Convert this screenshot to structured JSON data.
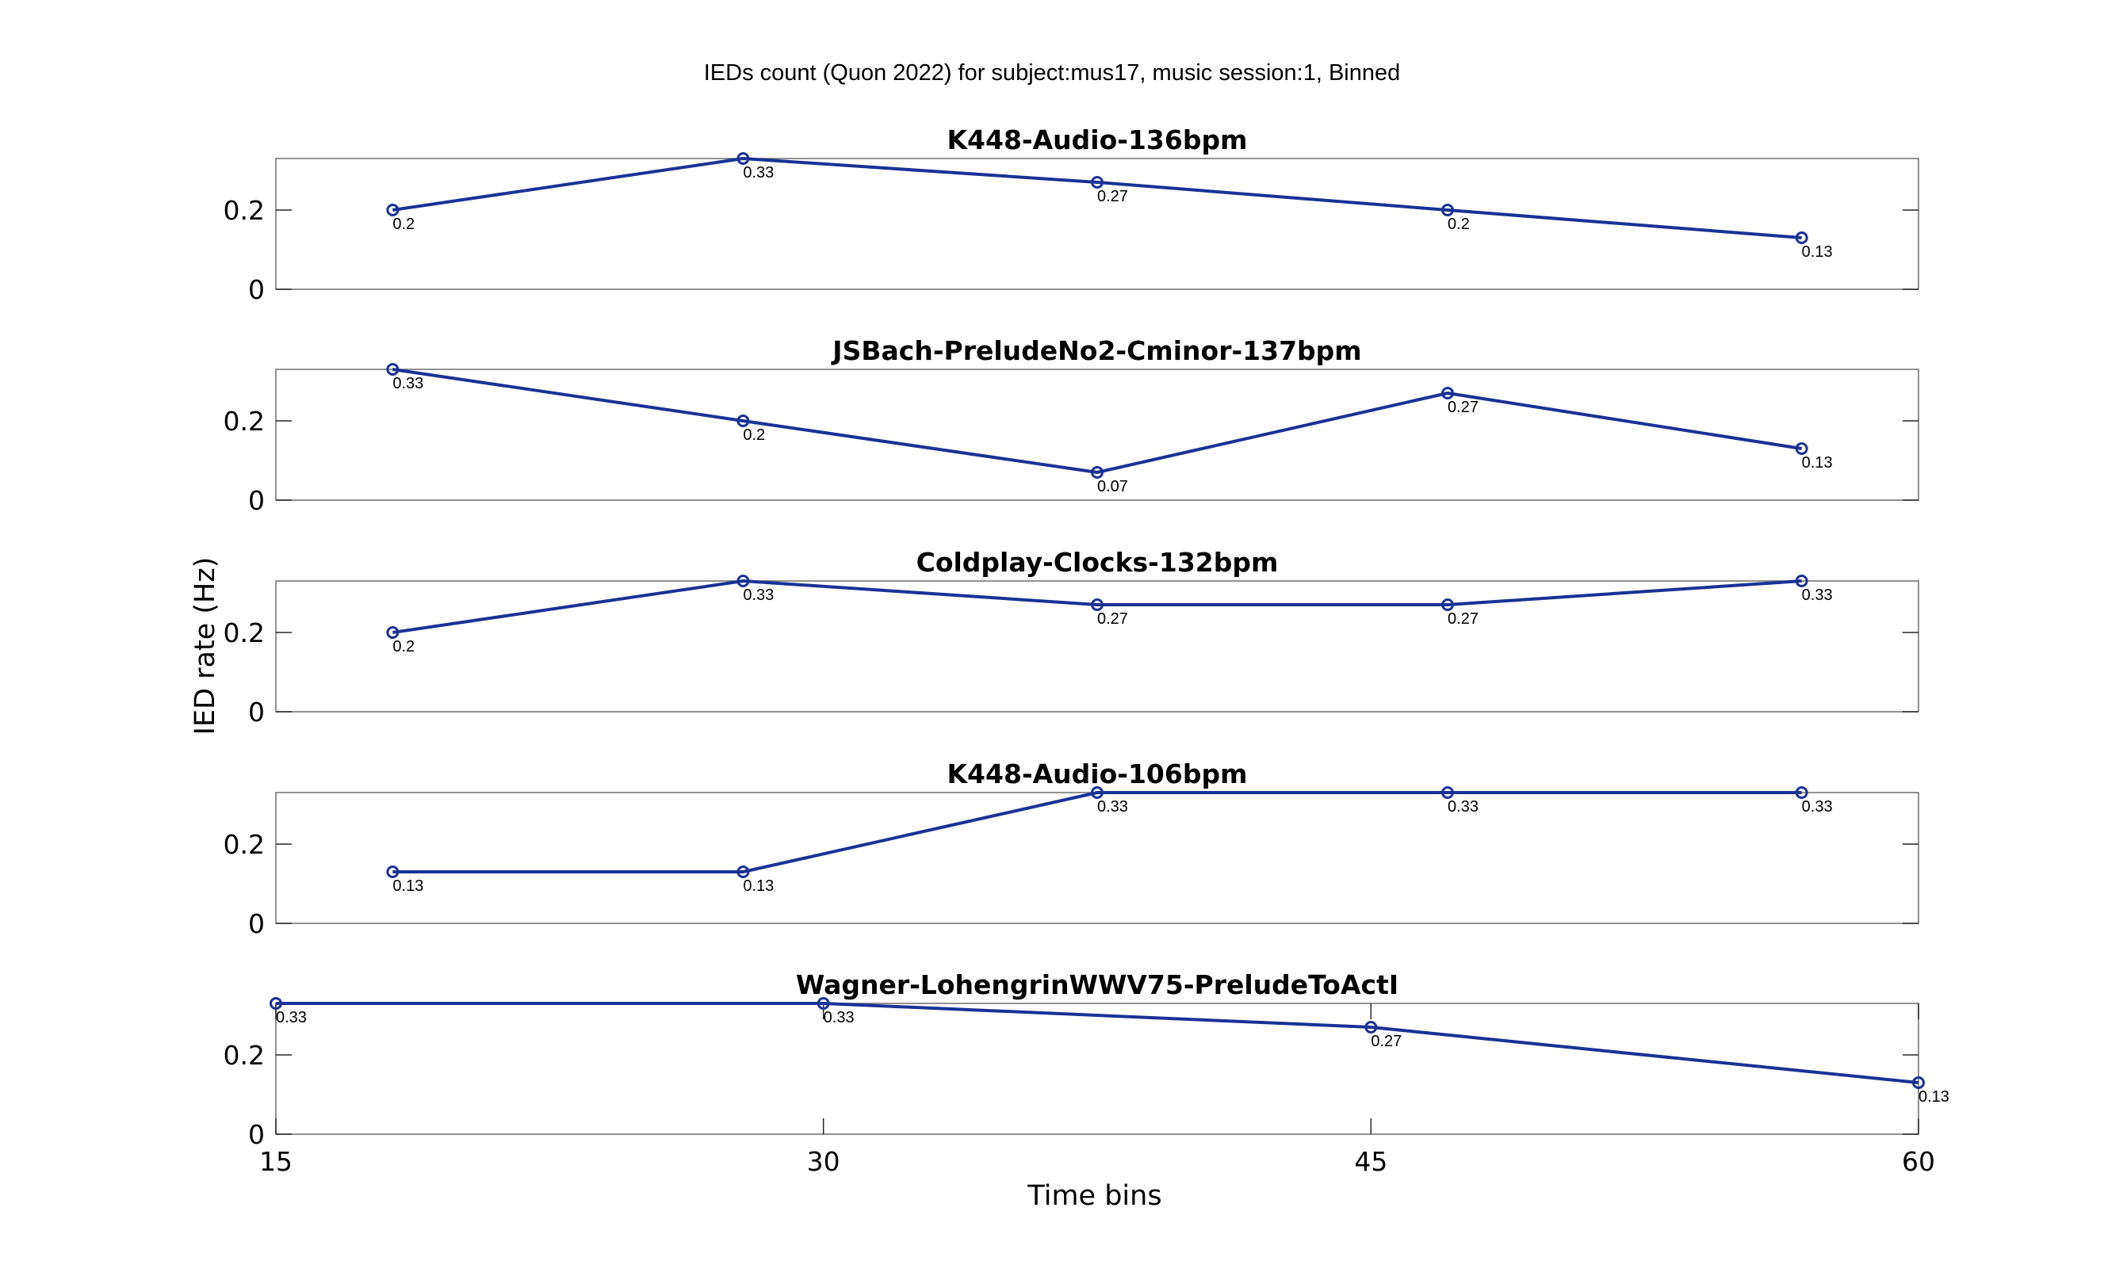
{
  "figure": {
    "suptitle": "IEDs count (Quon 2022) for subject:mus17, music session:1, Binned",
    "ylabel": "IED rate (Hz)",
    "xlabel": "Time bins",
    "line_color": "#1a3296"
  },
  "chart_data": [
    {
      "type": "line",
      "title": "K448-Audio-136bpm",
      "x": [
        18.2,
        27.8,
        37.5,
        47.1,
        56.8
      ],
      "values": [
        0.2,
        0.33,
        0.27,
        0.2,
        0.13
      ],
      "data_labels": [
        "0.2",
        "0.33",
        "0.27",
        "0.2",
        "0.13"
      ],
      "xlim": [
        15,
        60
      ],
      "ylim": [
        0,
        0.33
      ],
      "yticks": [
        0,
        0.2
      ],
      "ytick_labels": [
        "0",
        "0.2"
      ]
    },
    {
      "type": "line",
      "title": "JSBach-PreludeNo2-Cminor-137bpm",
      "x": [
        18.2,
        27.8,
        37.5,
        47.1,
        56.8
      ],
      "values": [
        0.33,
        0.2,
        0.07,
        0.27,
        0.13
      ],
      "data_labels": [
        "0.33",
        "0.2",
        "0.07",
        "0.27",
        "0.13"
      ],
      "xlim": [
        15,
        60
      ],
      "ylim": [
        0,
        0.33
      ],
      "yticks": [
        0,
        0.2
      ],
      "ytick_labels": [
        "0",
        "0.2"
      ]
    },
    {
      "type": "line",
      "title": "Coldplay-Clocks-132bpm",
      "x": [
        18.2,
        27.8,
        37.5,
        47.1,
        56.8
      ],
      "values": [
        0.2,
        0.33,
        0.27,
        0.27,
        0.33
      ],
      "data_labels": [
        "0.2",
        "0.33",
        "0.27",
        "0.27",
        "0.33"
      ],
      "xlim": [
        15,
        60
      ],
      "ylim": [
        0,
        0.33
      ],
      "yticks": [
        0,
        0.2
      ],
      "ytick_labels": [
        "0",
        "0.2"
      ]
    },
    {
      "type": "line",
      "title": "K448-Audio-106bpm",
      "x": [
        18.2,
        27.8,
        37.5,
        47.1,
        56.8
      ],
      "values": [
        0.13,
        0.13,
        0.33,
        0.33,
        0.33
      ],
      "data_labels": [
        "0.13",
        "0.13",
        "0.33",
        "0.33",
        "0.33"
      ],
      "xlim": [
        15,
        60
      ],
      "ylim": [
        0,
        0.33
      ],
      "yticks": [
        0,
        0.2
      ],
      "ytick_labels": [
        "0",
        "0.2"
      ]
    },
    {
      "type": "line",
      "title": "Wagner-LohengrinWWV75-PreludeToActI",
      "x": [
        15,
        30,
        45,
        60
      ],
      "values": [
        0.33,
        0.33,
        0.27,
        0.13
      ],
      "data_labels": [
        "0.33",
        "0.33",
        "0.27",
        "0.13"
      ],
      "xlim": [
        15,
        60
      ],
      "ylim": [
        0,
        0.33
      ],
      "yticks": [
        0,
        0.2
      ],
      "ytick_labels": [
        "0",
        "0.2"
      ],
      "xticks": [
        15,
        30,
        45,
        60
      ],
      "xtick_labels": [
        "15",
        "30",
        "45",
        "60"
      ]
    }
  ]
}
